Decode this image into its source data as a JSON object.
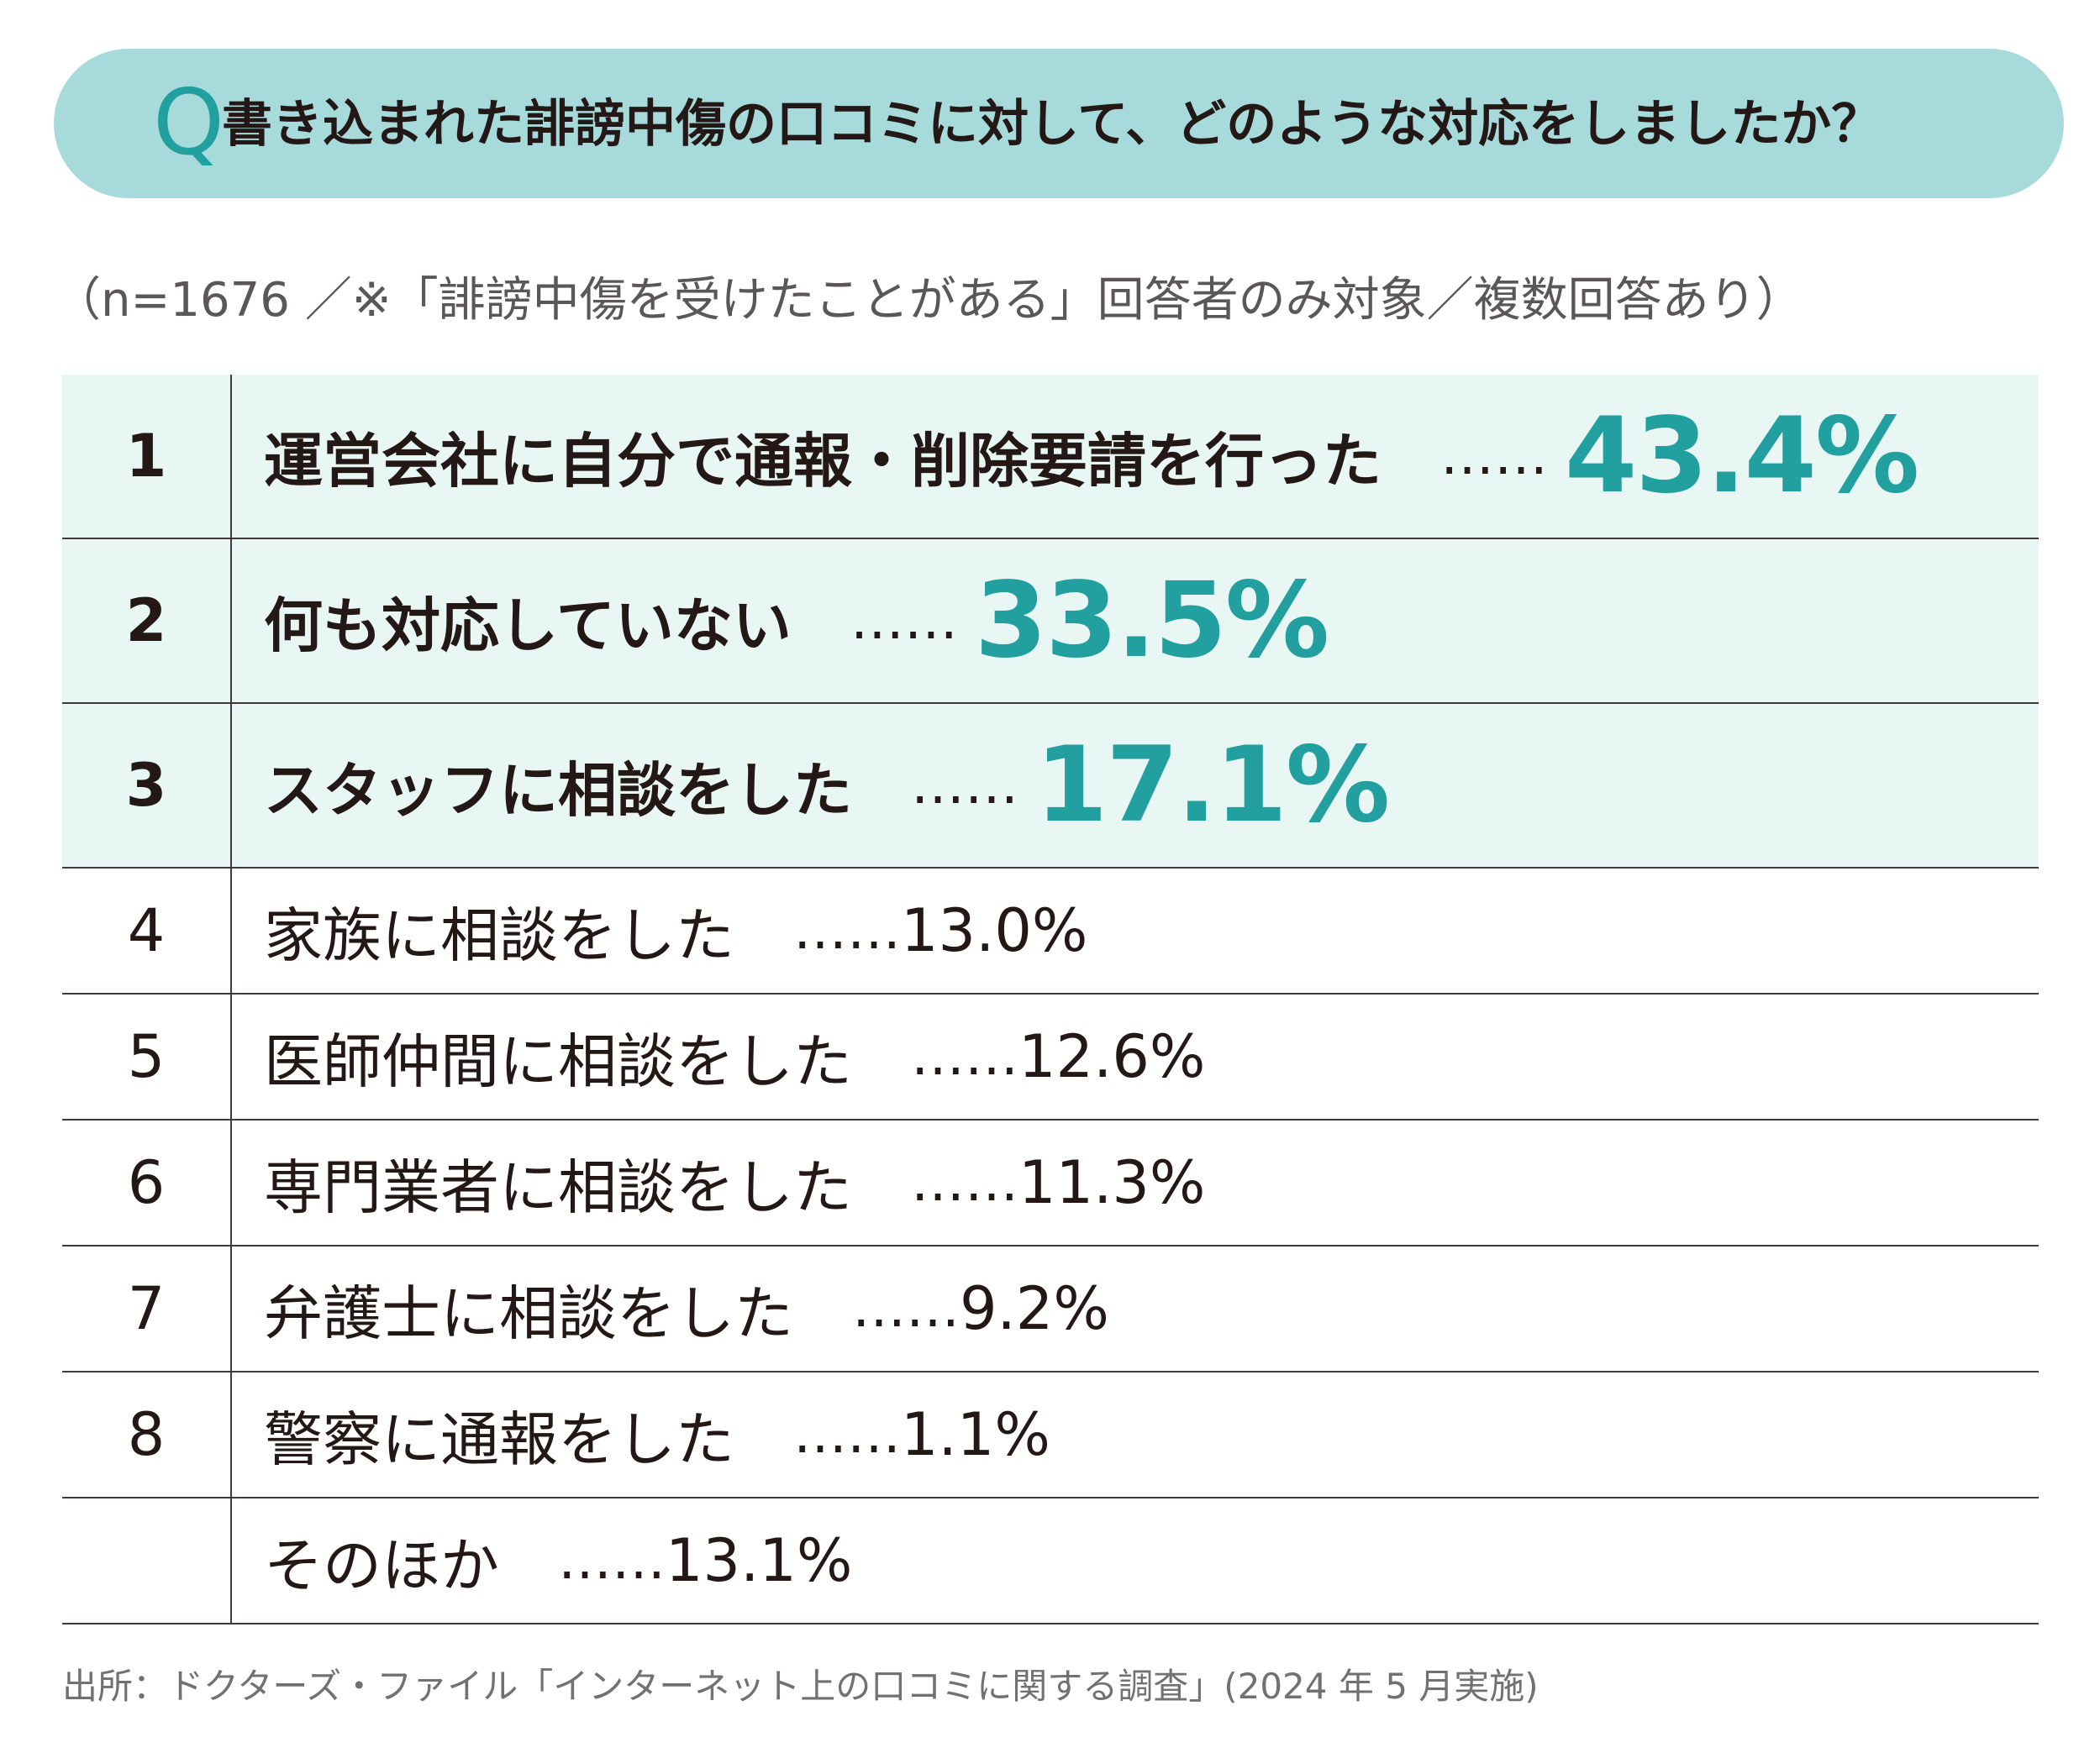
{
  "question": {
    "mark": "Q",
    "text": "書き込まれた誹謗中傷の口コミに対して、どのような対応をしましたか？"
  },
  "note": "（n=1676 ／※「誹謗中傷を受けたことがある」回答者のみ対象／複数回答あり）",
  "dots": "……",
  "chart_data": {
    "type": "table",
    "categories": [
      "運営会社に自分で通報・削除要請を行った",
      "何も対応していない",
      "スタッフに相談をした",
      "家族に相談をした",
      "医師仲間に相談をした",
      "専門業者に相談をした",
      "弁護士に相談をした",
      "警察に通報をした",
      "そのほか"
    ],
    "values": [
      43.4,
      33.5,
      17.1,
      13.0,
      12.6,
      11.3,
      9.2,
      1.1,
      13.1
    ],
    "rows": [
      {
        "rank": "1",
        "label": "運営会社に自分で通報・削除要請を行った",
        "value": "43.4%"
      },
      {
        "rank": "2",
        "label": "何も対応していない",
        "value": "33.5%"
      },
      {
        "rank": "3",
        "label": "スタッフに相談をした",
        "value": "17.1%"
      },
      {
        "rank": "4",
        "label": "家族に相談をした",
        "value": "13.0%"
      },
      {
        "rank": "5",
        "label": "医師仲間に相談をした",
        "value": "12.6%"
      },
      {
        "rank": "6",
        "label": "専門業者に相談をした",
        "value": "11.3%"
      },
      {
        "rank": "7",
        "label": "弁護士に相談をした",
        "value": "9.2%"
      },
      {
        "rank": "8",
        "label": "警察に通報をした",
        "value": "1.1%"
      },
      {
        "rank": "",
        "label": "そのほか",
        "value": "13.1%"
      }
    ]
  },
  "source": "出所：ドクターズ・ファイル「インターネット上の口コミに関する調査」(2024 年 5 月実施)",
  "colors": {
    "banner": "#a6dadb",
    "accent": "#229f9f",
    "highlight_row": "#e8f6f4",
    "rule": "#3e3a39"
  }
}
